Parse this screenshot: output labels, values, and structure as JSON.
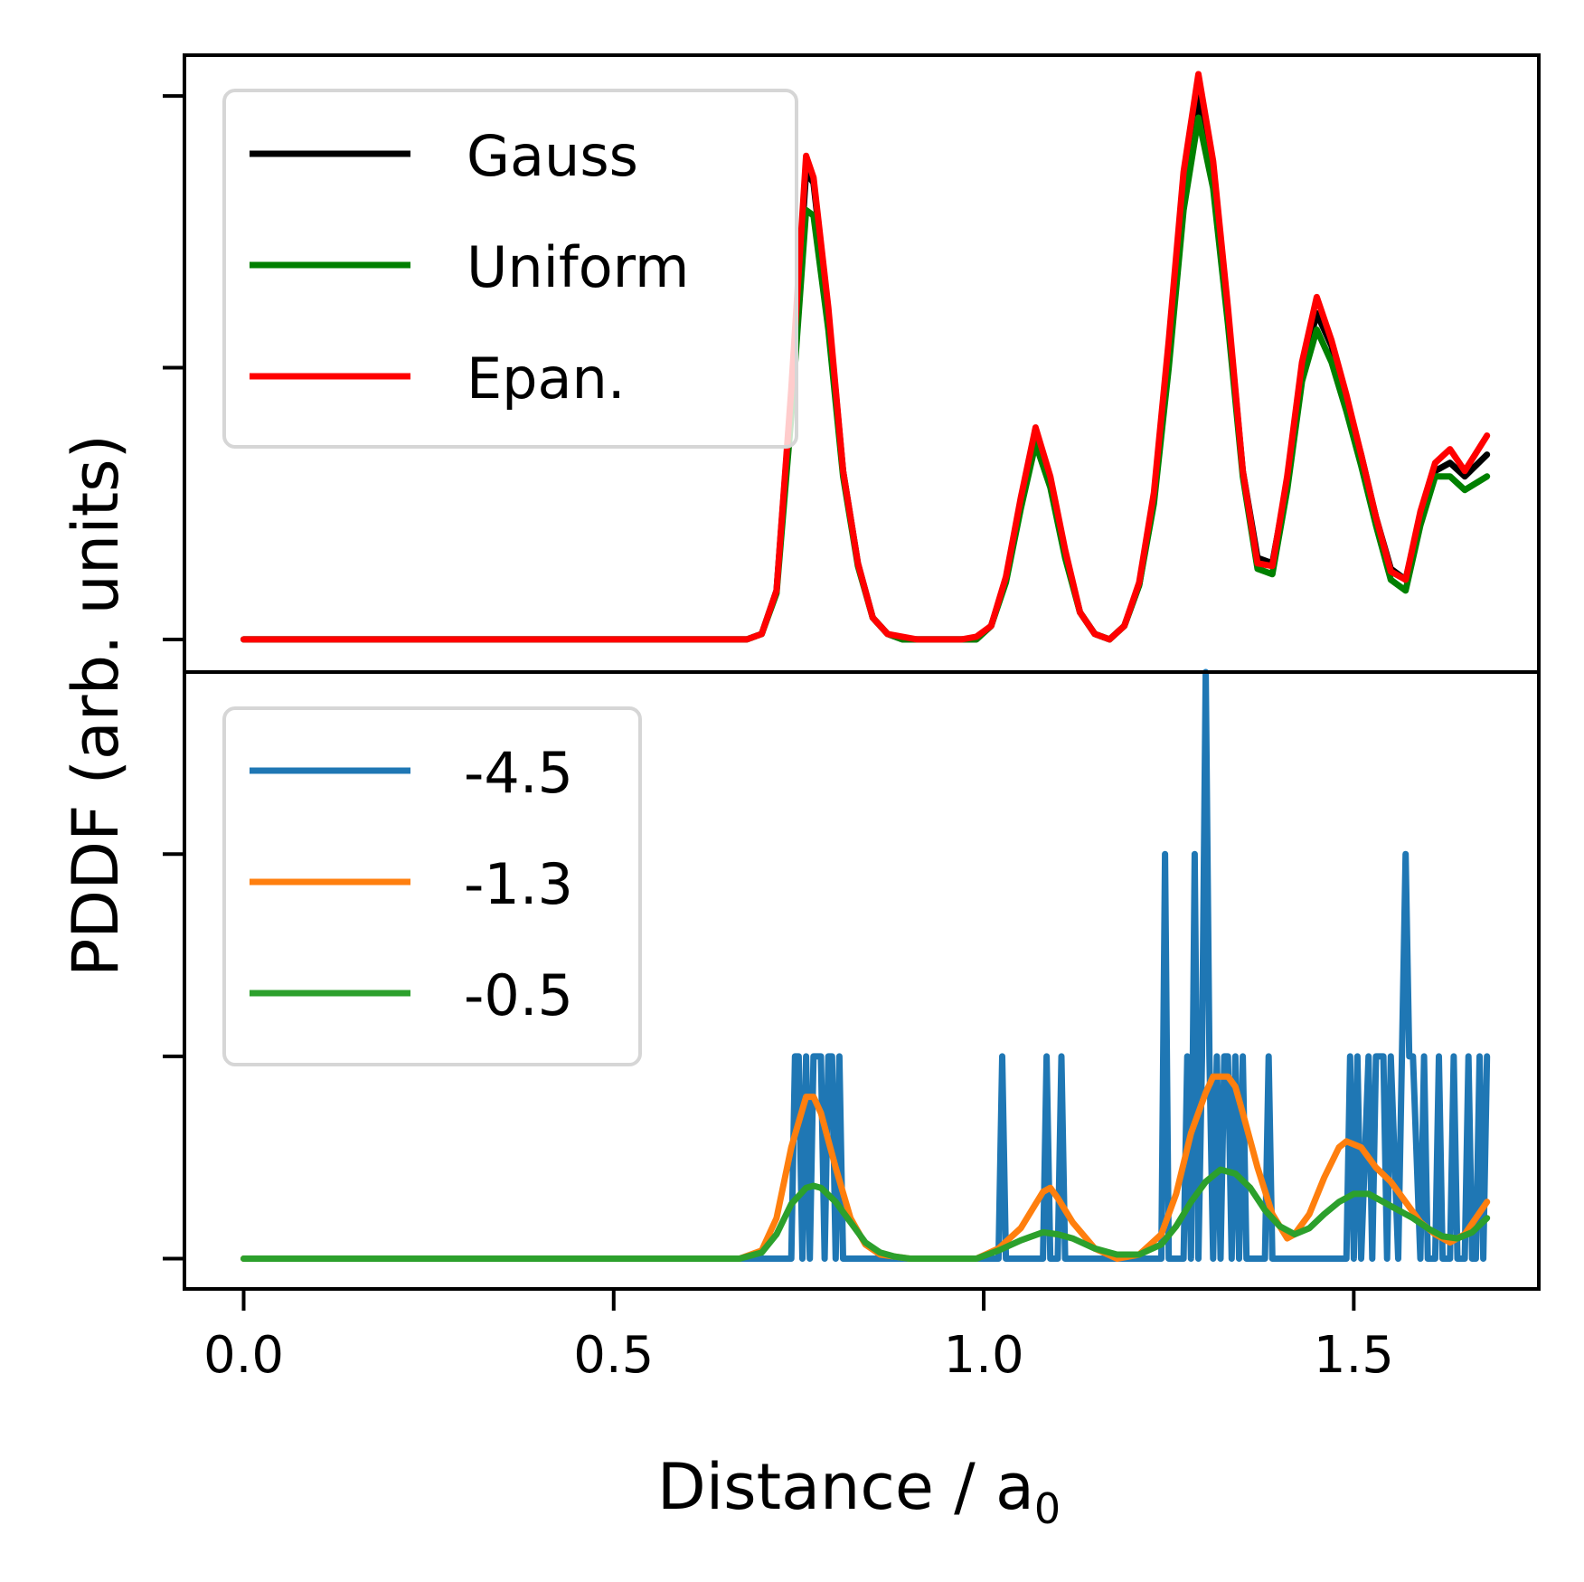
{
  "chart_data": [
    {
      "type": "line",
      "panel": "top",
      "xlabel_main": "Distance / a",
      "xlabel_sub": "0",
      "ylabel": "PDDF (arb. units)",
      "xlim": [
        -0.08,
        1.75
      ],
      "ylim": [
        -0.12,
        2.15
      ],
      "x_ticks": [
        0.0,
        0.5,
        1.0,
        1.5
      ],
      "x_tick_labels": [
        "0.0",
        "0.5",
        "1.0",
        "1.5"
      ],
      "y_ticks": [
        0,
        1,
        2
      ],
      "legend_placement": "upper-left",
      "series": [
        {
          "name": "Gauss",
          "color": "#000000",
          "x": [
            0.0,
            0.68,
            0.7,
            0.72,
            0.74,
            0.76,
            0.77,
            0.79,
            0.81,
            0.83,
            0.85,
            0.87,
            0.89,
            0.91,
            0.93,
            0.95,
            0.97,
            0.99,
            1.01,
            1.03,
            1.05,
            1.07,
            1.09,
            1.11,
            1.13,
            1.15,
            1.17,
            1.19,
            1.21,
            1.23,
            1.25,
            1.27,
            1.29,
            1.31,
            1.33,
            1.35,
            1.37,
            1.39,
            1.41,
            1.43,
            1.45,
            1.47,
            1.49,
            1.51,
            1.53,
            1.55,
            1.57,
            1.59,
            1.61,
            1.63,
            1.65,
            1.68
          ],
          "y": [
            0,
            0,
            0.02,
            0.18,
            0.9,
            1.72,
            1.68,
            1.2,
            0.62,
            0.28,
            0.08,
            0.02,
            0,
            0,
            0,
            0,
            0,
            0,
            0.05,
            0.22,
            0.5,
            0.75,
            0.58,
            0.32,
            0.1,
            0.02,
            0,
            0.05,
            0.2,
            0.52,
            1.05,
            1.65,
            2.0,
            1.72,
            1.2,
            0.62,
            0.3,
            0.28,
            0.58,
            0.98,
            1.2,
            1.08,
            0.88,
            0.68,
            0.45,
            0.26,
            0.22,
            0.45,
            0.62,
            0.65,
            0.6,
            0.68
          ]
        },
        {
          "name": "Uniform",
          "color": "#008000",
          "x": [
            0.0,
            0.68,
            0.7,
            0.72,
            0.74,
            0.76,
            0.77,
            0.79,
            0.81,
            0.83,
            0.85,
            0.87,
            0.89,
            0.91,
            0.93,
            0.95,
            0.97,
            0.99,
            1.01,
            1.03,
            1.05,
            1.07,
            1.09,
            1.11,
            1.13,
            1.15,
            1.17,
            1.19,
            1.21,
            1.23,
            1.25,
            1.27,
            1.29,
            1.31,
            1.33,
            1.35,
            1.37,
            1.39,
            1.41,
            1.43,
            1.45,
            1.47,
            1.49,
            1.51,
            1.53,
            1.55,
            1.57,
            1.59,
            1.61,
            1.63,
            1.65,
            1.68
          ],
          "y": [
            0,
            0,
            0.02,
            0.17,
            0.82,
            1.58,
            1.56,
            1.14,
            0.6,
            0.27,
            0.08,
            0.02,
            0,
            0,
            0,
            0,
            0,
            0,
            0.05,
            0.21,
            0.48,
            0.72,
            0.56,
            0.3,
            0.1,
            0.02,
            0,
            0.05,
            0.2,
            0.5,
            1.0,
            1.58,
            1.92,
            1.66,
            1.16,
            0.6,
            0.26,
            0.24,
            0.55,
            0.95,
            1.14,
            1.02,
            0.84,
            0.64,
            0.42,
            0.22,
            0.18,
            0.42,
            0.6,
            0.6,
            0.55,
            0.6
          ]
        },
        {
          "name": "Epan.",
          "color": "#ff0000",
          "x": [
            0.0,
            0.68,
            0.7,
            0.72,
            0.74,
            0.76,
            0.77,
            0.79,
            0.81,
            0.83,
            0.85,
            0.87,
            0.89,
            0.91,
            0.93,
            0.95,
            0.97,
            0.99,
            1.01,
            1.03,
            1.05,
            1.07,
            1.09,
            1.11,
            1.13,
            1.15,
            1.17,
            1.19,
            1.21,
            1.23,
            1.25,
            1.27,
            1.29,
            1.31,
            1.33,
            1.35,
            1.37,
            1.39,
            1.41,
            1.43,
            1.45,
            1.47,
            1.49,
            1.51,
            1.53,
            1.55,
            1.57,
            1.59,
            1.61,
            1.63,
            1.65,
            1.68
          ],
          "y": [
            0,
            0,
            0.02,
            0.18,
            0.92,
            1.78,
            1.7,
            1.22,
            0.62,
            0.28,
            0.08,
            0.02,
            0.01,
            0,
            0,
            0,
            0,
            0.01,
            0.05,
            0.23,
            0.52,
            0.78,
            0.6,
            0.33,
            0.1,
            0.02,
            0,
            0.05,
            0.21,
            0.54,
            1.1,
            1.72,
            2.08,
            1.76,
            1.22,
            0.62,
            0.28,
            0.27,
            0.6,
            1.02,
            1.26,
            1.1,
            0.9,
            0.68,
            0.45,
            0.25,
            0.22,
            0.47,
            0.65,
            0.7,
            0.62,
            0.75
          ]
        }
      ]
    },
    {
      "type": "line",
      "panel": "bottom",
      "xlim": [
        -0.08,
        1.75
      ],
      "ylim": [
        -0.15,
        2.9
      ],
      "y_ticks": [
        0,
        1,
        2
      ],
      "legend_placement": "upper-left",
      "series": [
        {
          "name": "-4.5",
          "color": "#1f77b4",
          "x": [
            0.0,
            0.74,
            0.745,
            0.75,
            0.755,
            0.76,
            0.765,
            0.77,
            0.775,
            0.78,
            0.785,
            0.79,
            0.795,
            0.8,
            0.805,
            0.81,
            0.815,
            1.02,
            1.025,
            1.03,
            1.08,
            1.085,
            1.09,
            1.1,
            1.105,
            1.11,
            1.24,
            1.245,
            1.25,
            1.27,
            1.275,
            1.28,
            1.285,
            1.29,
            1.295,
            1.3,
            1.305,
            1.31,
            1.315,
            1.32,
            1.325,
            1.33,
            1.335,
            1.34,
            1.345,
            1.35,
            1.355,
            1.36,
            1.38,
            1.385,
            1.39,
            1.49,
            1.495,
            1.5,
            1.505,
            1.51,
            1.52,
            1.525,
            1.53,
            1.54,
            1.545,
            1.55,
            1.56,
            1.565,
            1.57,
            1.575,
            1.58,
            1.59,
            1.595,
            1.6,
            1.61,
            1.615,
            1.62,
            1.63,
            1.635,
            1.64,
            1.65,
            1.655,
            1.66,
            1.665,
            1.67,
            1.675,
            1.68
          ],
          "y": [
            0,
            0,
            1,
            1,
            0,
            1,
            0,
            1,
            1,
            1,
            0,
            1,
            1,
            0,
            1,
            0,
            0,
            0,
            1,
            0,
            0,
            1,
            0,
            0,
            1,
            0,
            0,
            2,
            0,
            0,
            1,
            0,
            2,
            0,
            1,
            2.9,
            1,
            0,
            1,
            0,
            1,
            1,
            0,
            1,
            0,
            1,
            0,
            0,
            0,
            1,
            0,
            0,
            1,
            0,
            1,
            0,
            1,
            0,
            1,
            1,
            0,
            1,
            0,
            1,
            2,
            1,
            1,
            0,
            1,
            0,
            0,
            1,
            0,
            0,
            1,
            0,
            0,
            1,
            0,
            0,
            1,
            0,
            1
          ]
        },
        {
          "name": "-1.3",
          "color": "#ff7f0e",
          "x": [
            0.0,
            0.67,
            0.7,
            0.72,
            0.74,
            0.76,
            0.77,
            0.78,
            0.8,
            0.82,
            0.84,
            0.86,
            0.88,
            0.9,
            0.95,
            0.99,
            1.02,
            1.05,
            1.08,
            1.09,
            1.1,
            1.12,
            1.15,
            1.18,
            1.21,
            1.24,
            1.26,
            1.28,
            1.3,
            1.31,
            1.33,
            1.34,
            1.35,
            1.37,
            1.39,
            1.41,
            1.42,
            1.44,
            1.46,
            1.48,
            1.49,
            1.51,
            1.53,
            1.55,
            1.57,
            1.59,
            1.61,
            1.63,
            1.65,
            1.68
          ],
          "y": [
            0,
            0,
            0.04,
            0.2,
            0.55,
            0.8,
            0.8,
            0.72,
            0.45,
            0.2,
            0.07,
            0.02,
            0.01,
            0,
            0,
            0,
            0.05,
            0.15,
            0.33,
            0.35,
            0.3,
            0.18,
            0.05,
            0,
            0.02,
            0.12,
            0.32,
            0.62,
            0.82,
            0.9,
            0.9,
            0.85,
            0.72,
            0.45,
            0.22,
            0.1,
            0.12,
            0.22,
            0.4,
            0.55,
            0.58,
            0.55,
            0.45,
            0.38,
            0.28,
            0.18,
            0.12,
            0.08,
            0.12,
            0.28
          ]
        },
        {
          "name": "-0.5",
          "color": "#2ca02c",
          "x": [
            0.0,
            0.67,
            0.7,
            0.72,
            0.74,
            0.76,
            0.77,
            0.78,
            0.8,
            0.82,
            0.84,
            0.86,
            0.88,
            0.9,
            0.95,
            0.99,
            1.02,
            1.05,
            1.08,
            1.1,
            1.12,
            1.15,
            1.18,
            1.21,
            1.24,
            1.26,
            1.28,
            1.3,
            1.32,
            1.34,
            1.36,
            1.38,
            1.4,
            1.42,
            1.44,
            1.46,
            1.48,
            1.5,
            1.52,
            1.54,
            1.56,
            1.58,
            1.6,
            1.62,
            1.64,
            1.66,
            1.68
          ],
          "y": [
            0,
            0,
            0.03,
            0.12,
            0.27,
            0.35,
            0.36,
            0.35,
            0.28,
            0.18,
            0.08,
            0.03,
            0.01,
            0,
            0,
            0,
            0.04,
            0.09,
            0.13,
            0.12,
            0.1,
            0.05,
            0.02,
            0.02,
            0.07,
            0.16,
            0.28,
            0.38,
            0.44,
            0.42,
            0.35,
            0.24,
            0.16,
            0.12,
            0.15,
            0.22,
            0.28,
            0.32,
            0.32,
            0.28,
            0.24,
            0.2,
            0.15,
            0.11,
            0.1,
            0.13,
            0.2
          ]
        }
      ]
    }
  ]
}
